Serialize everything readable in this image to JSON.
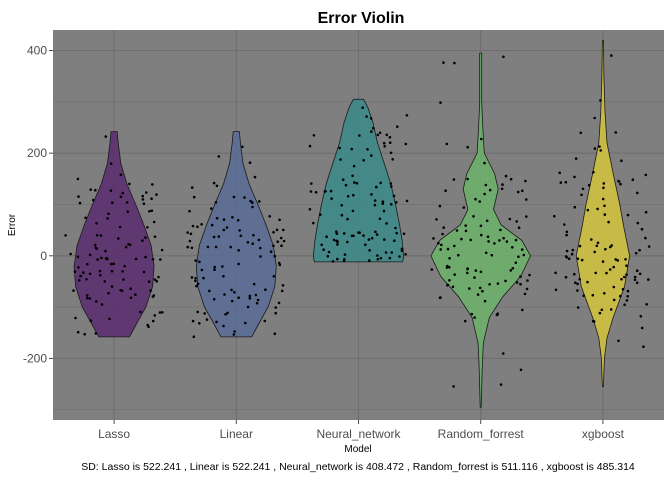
{
  "chart_data": {
    "type": "violin",
    "title": "Error Violin",
    "xlabel": "Model",
    "ylabel": "Error",
    "caption": "SD:  Lasso is 522.241 , Linear is 522.241 , Neural_network is 408.472 , Random_forrest is 511.116 , xgboost is 485.314",
    "ylim": [
      -320,
      440
    ],
    "y_ticks": [
      -200,
      0,
      200,
      400
    ],
    "grid": true,
    "legend": "none",
    "categories": [
      "Lasso",
      "Linear",
      "Neural_network",
      "Random_forrest",
      "xgboost"
    ],
    "series": [
      {
        "category": "Lasso",
        "color": "#5b2c6f",
        "min": -158,
        "max": 242,
        "density": [
          [
            -158,
            0.3
          ],
          [
            -130,
            0.45
          ],
          [
            -100,
            0.62
          ],
          [
            -60,
            0.75
          ],
          [
            -20,
            0.78
          ],
          [
            20,
            0.72
          ],
          [
            60,
            0.58
          ],
          [
            100,
            0.42
          ],
          [
            140,
            0.25
          ],
          [
            180,
            0.13
          ],
          [
            220,
            0.08
          ],
          [
            242,
            0.06
          ]
        ]
      },
      {
        "category": "Linear",
        "color": "#586c96",
        "min": -158,
        "max": 242,
        "density": [
          [
            -158,
            0.3
          ],
          [
            -130,
            0.45
          ],
          [
            -100,
            0.62
          ],
          [
            -60,
            0.75
          ],
          [
            -20,
            0.78
          ],
          [
            20,
            0.72
          ],
          [
            60,
            0.58
          ],
          [
            100,
            0.42
          ],
          [
            140,
            0.25
          ],
          [
            180,
            0.13
          ],
          [
            220,
            0.08
          ],
          [
            242,
            0.06
          ]
        ]
      },
      {
        "category": "Neural_network",
        "color": "#3a8a8a",
        "min": -12,
        "max": 305,
        "density": [
          [
            -12,
            0.86
          ],
          [
            0,
            0.88
          ],
          [
            30,
            0.85
          ],
          [
            60,
            0.8
          ],
          [
            100,
            0.72
          ],
          [
            140,
            0.63
          ],
          [
            180,
            0.5
          ],
          [
            220,
            0.37
          ],
          [
            260,
            0.28
          ],
          [
            290,
            0.18
          ],
          [
            305,
            0.1
          ]
        ]
      },
      {
        "category": "Random_forrest",
        "color": "#6db36b",
        "min": -295,
        "max": 395,
        "density": [
          [
            -295,
            0.01
          ],
          [
            -220,
            0.03
          ],
          [
            -170,
            0.05
          ],
          [
            -120,
            0.17
          ],
          [
            -80,
            0.43
          ],
          [
            -40,
            0.78
          ],
          [
            0,
            0.97
          ],
          [
            30,
            0.8
          ],
          [
            60,
            0.4
          ],
          [
            90,
            0.25
          ],
          [
            130,
            0.34
          ],
          [
            160,
            0.27
          ],
          [
            200,
            0.07
          ],
          [
            250,
            0.04
          ],
          [
            300,
            0.02
          ],
          [
            360,
            0.02
          ],
          [
            395,
            0.02
          ]
        ]
      },
      {
        "category": "xgboost",
        "color": "#d5c43d",
        "min": -255,
        "max": 420,
        "density": [
          [
            -255,
            0.01
          ],
          [
            -200,
            0.03
          ],
          [
            -160,
            0.08
          ],
          [
            -120,
            0.2
          ],
          [
            -60,
            0.42
          ],
          [
            0,
            0.52
          ],
          [
            60,
            0.4
          ],
          [
            100,
            0.33
          ],
          [
            160,
            0.2
          ],
          [
            220,
            0.08
          ],
          [
            280,
            0.04
          ],
          [
            350,
            0.02
          ],
          [
            420,
            0.01
          ]
        ]
      }
    ]
  }
}
